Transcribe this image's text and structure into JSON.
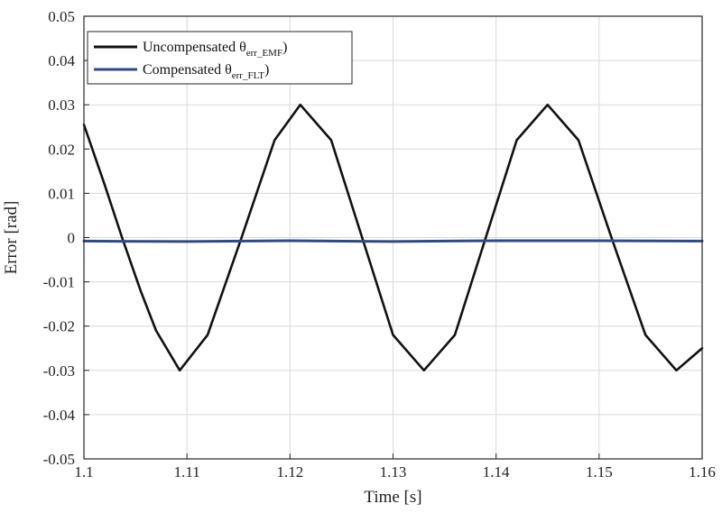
{
  "chart_data": {
    "type": "line",
    "xlabel": "Time [s]",
    "ylabel": "Error [rad]",
    "xlim": [
      1.1,
      1.16
    ],
    "ylim": [
      -0.05,
      0.05
    ],
    "xticks": [
      1.1,
      1.11,
      1.12,
      1.13,
      1.14,
      1.15,
      1.16
    ],
    "yticks": [
      0.05,
      0.04,
      0.03,
      0.02,
      0.01,
      0,
      -0.01,
      -0.02,
      -0.03,
      -0.04,
      -0.05
    ],
    "xtick_labels": [
      "1.1",
      "1.11",
      "1.12",
      "1.13",
      "1.14",
      "1.15",
      "1.16"
    ],
    "ytick_labels": [
      "0.05",
      "0.04",
      "0.03",
      "0.02",
      "0.01",
      "0",
      "-0.01",
      "-0.02",
      "-0.03",
      "-0.04",
      "-0.05"
    ],
    "grid": true,
    "legend_position": "top-left",
    "series": [
      {
        "name": "Uncompensated θ",
        "subscript": "err_EMF",
        "suffix": ")",
        "color": "#111111",
        "x": [
          1.1,
          1.102,
          1.1037,
          1.1055,
          1.107,
          1.1093,
          1.112,
          1.1153,
          1.1185,
          1.121,
          1.124,
          1.127,
          1.13,
          1.133,
          1.136,
          1.139,
          1.142,
          1.145,
          1.148,
          1.1512,
          1.1545,
          1.1575,
          1.16
        ],
        "y": [
          0.0255,
          0.012,
          0.0,
          -0.012,
          -0.021,
          -0.03,
          -0.022,
          0.0,
          0.022,
          0.03,
          0.022,
          0.0,
          -0.022,
          -0.03,
          -0.022,
          0.0,
          0.022,
          0.03,
          0.022,
          0.0,
          -0.022,
          -0.03,
          -0.025
        ]
      },
      {
        "name": "Compensated θ",
        "subscript": "err_FLT",
        "suffix": ")",
        "color": "#2e4a8a",
        "x": [
          1.1,
          1.11,
          1.12,
          1.13,
          1.14,
          1.15,
          1.16
        ],
        "y": [
          -0.0008,
          -0.0009,
          -0.0007,
          -0.0009,
          -0.0007,
          -0.0007,
          -0.0008
        ]
      }
    ]
  }
}
